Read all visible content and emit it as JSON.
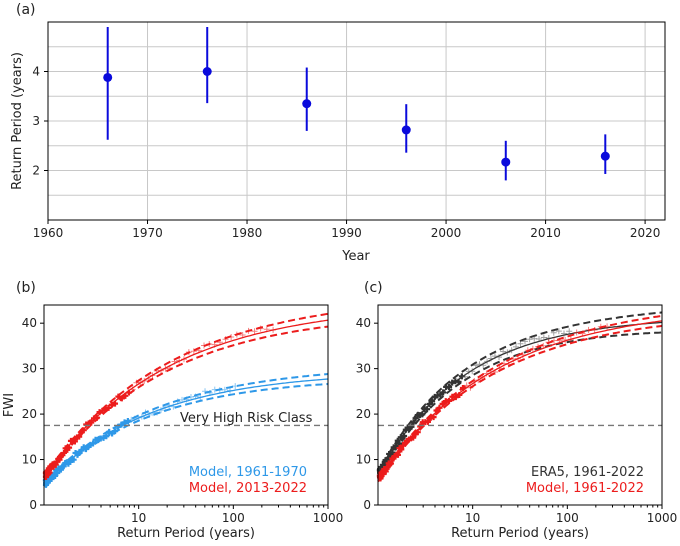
{
  "chart_data": [
    {
      "panel": "(a)",
      "type": "scatter",
      "xlabel": "Year",
      "ylabel": "Return Period (years)",
      "xlim": [
        1960,
        2022
      ],
      "ylim": [
        1,
        5
      ],
      "xticks": [
        1960,
        1970,
        1980,
        1990,
        2000,
        2010,
        2020
      ],
      "yticks": [
        2,
        3,
        4
      ],
      "grid": true,
      "color": "#0a0adc",
      "points": [
        {
          "x": 1966,
          "y": 3.88,
          "lo": 2.62,
          "hi": 4.9
        },
        {
          "x": 1976,
          "y": 4.0,
          "lo": 3.36,
          "hi": 4.9
        },
        {
          "x": 1986,
          "y": 3.35,
          "lo": 2.8,
          "hi": 4.08
        },
        {
          "x": 1996,
          "y": 2.82,
          "lo": 2.36,
          "hi": 3.34
        },
        {
          "x": 2006,
          "y": 2.17,
          "lo": 1.8,
          "hi": 2.6
        },
        {
          "x": 2016,
          "y": 2.29,
          "lo": 1.93,
          "hi": 2.73
        }
      ]
    },
    {
      "panel": "(b)",
      "type": "line",
      "xlabel": "Return Period (years)",
      "ylabel": "FWI",
      "xscale": "log",
      "xlim": [
        1,
        1000
      ],
      "ylim": [
        0,
        44
      ],
      "xticks": [
        10,
        100,
        1000
      ],
      "yticks": [
        0,
        10,
        20,
        30,
        40
      ],
      "threshold": {
        "value": 17.5,
        "label": "Very High Risk Class"
      },
      "series": [
        {
          "name": "Model, 1961-1970",
          "color": "#2e98e8",
          "fit": {
            "a": 4.5,
            "M": 29.5,
            "k": 0.55
          },
          "ci": 1.1
        },
        {
          "name": "Model, 2013-2022",
          "color": "#ec1c1c",
          "fit": {
            "a": 6.0,
            "M": 44.5,
            "k": 0.48
          },
          "ci": 1.4
        }
      ]
    },
    {
      "panel": "(c)",
      "type": "line",
      "xlabel": "Return Period (years)",
      "ylabel": "",
      "xscale": "log",
      "xlim": [
        1,
        1000
      ],
      "ylim": [
        0,
        44
      ],
      "xticks": [
        10,
        100,
        1000
      ],
      "yticks": [
        0,
        10,
        20,
        30,
        40
      ],
      "threshold": {
        "value": 17.5,
        "label": ""
      },
      "series": [
        {
          "name": "ERA5, 1961-2022",
          "color": "#333333",
          "fit": {
            "a": 6.5,
            "M": 41.5,
            "k": 0.68
          },
          "ci": 2.2
        },
        {
          "name": "Model, 1961-2022",
          "color": "#ec1c1c",
          "fit": {
            "a": 5.5,
            "M": 44.0,
            "k": 0.5
          },
          "ci": 1.1
        }
      ]
    }
  ]
}
